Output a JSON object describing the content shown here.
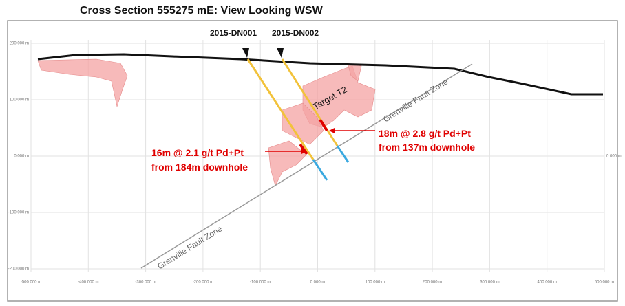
{
  "header": {
    "title": "Cross Section 555275 mE: View Looking WSW"
  },
  "axes": {
    "x_ticks": [
      "-500 000 m",
      "-400 000 m",
      "-300 000 m",
      "-200 000 m",
      "-100 000 m",
      "0 000 m",
      "100 000 m",
      "200 000 m",
      "300 000 m",
      "400 000 m",
      "500 000 m"
    ],
    "y_ticks": [
      "200 000 m",
      "100 000 m",
      "0 000 m",
      "-100 000 m",
      "-200 000 m"
    ],
    "y_ticks_right": [
      "0 000 m"
    ]
  },
  "drill_holes": [
    {
      "label": "2015-DN001"
    },
    {
      "label": "2015-DN002"
    }
  ],
  "labels": {
    "target": "Target T2",
    "fault_upper": "Grenville Fault Zone",
    "fault_lower": "Grenville Fault Zone"
  },
  "annotations": [
    {
      "line1": "16m @ 2.1 g/t Pd+Pt",
      "line2": "from 184m downhole"
    },
    {
      "line1": "18m @ 2.8 g/t Pd+Pt",
      "line2": "from 137m downhole"
    }
  ]
}
